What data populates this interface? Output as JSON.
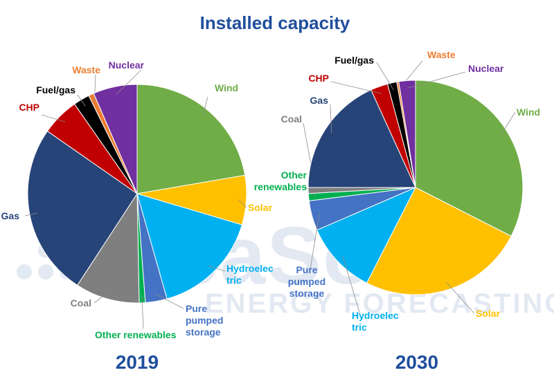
{
  "watermark": {
    "brand": "AleaSoft",
    "tagline": "ENERGY FORECASTING"
  },
  "chart_data": [
    {
      "type": "pie",
      "title": "Installed capacity",
      "subtitle": "2019",
      "slices": [
        {
          "label": "Wind",
          "value": 22.3,
          "color": "#70ad47"
        },
        {
          "label": "Solar",
          "value": 7.3,
          "color": "#ffc000"
        },
        {
          "label": "Hydroelec tric",
          "value": 16.0,
          "color": "#00b0f0"
        },
        {
          "label": "Pure pumped storage",
          "value": 3.2,
          "color": "#4472c4"
        },
        {
          "label": "Other renewables",
          "value": 0.9,
          "color": "#00b050"
        },
        {
          "label": "Coal",
          "value": 9.5,
          "color": "#7f7f7f"
        },
        {
          "label": "Gas",
          "value": 25.5,
          "color": "#264478"
        },
        {
          "label": "CHP",
          "value": 5.6,
          "color": "#c00000"
        },
        {
          "label": "Fuel/gas",
          "value": 2.4,
          "color": "#000000"
        },
        {
          "label": "Waste",
          "value": 0.8,
          "color": "#ed7d31"
        },
        {
          "label": "Nuclear",
          "value": 6.5,
          "color": "#7030a0"
        }
      ]
    },
    {
      "type": "pie",
      "title": "Installed capacity",
      "subtitle": "2030",
      "slices": [
        {
          "label": "Wind",
          "value": 32.5,
          "color": "#70ad47"
        },
        {
          "label": "Solar",
          "value": 25.0,
          "color": "#ffc000"
        },
        {
          "label": "Hydroelec tric",
          "value": 11.0,
          "color": "#00b0f0"
        },
        {
          "label": "Pure pumped storage",
          "value": 4.5,
          "color": "#4472c4"
        },
        {
          "label": "Other renewables",
          "value": 1.1,
          "color": "#00b050"
        },
        {
          "label": "Coal",
          "value": 0.9,
          "color": "#7f7f7f"
        },
        {
          "label": "Gas",
          "value": 18.2,
          "color": "#264478"
        },
        {
          "label": "CHP",
          "value": 2.6,
          "color": "#c00000"
        },
        {
          "label": "Fuel/gas",
          "value": 1.4,
          "color": "#000000"
        },
        {
          "label": "Waste",
          "value": 0.3,
          "color": "#ed7d31"
        },
        {
          "label": "Nuclear",
          "value": 2.5,
          "color": "#7030a0"
        }
      ]
    }
  ]
}
